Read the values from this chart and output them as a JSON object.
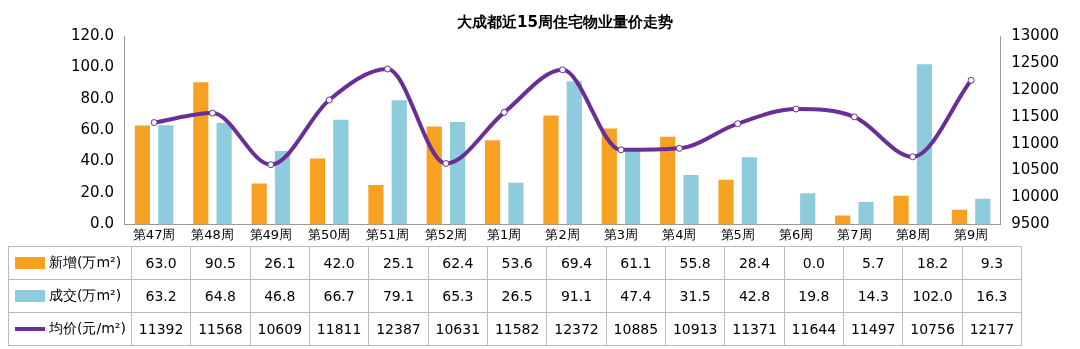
{
  "chart_data": {
    "type": "bar",
    "title": "大成都近15周住宅物业量价走势",
    "categories": [
      "第47周",
      "第48周",
      "第49周",
      "第50周",
      "第51周",
      "第52周",
      "第1周",
      "第2周",
      "第3周",
      "第4周",
      "第5周",
      "第6周",
      "第7周",
      "第8周",
      "第9周"
    ],
    "series": [
      {
        "name": "新增(万m²)",
        "color": "#f7a122",
        "values": [
          63.0,
          90.5,
          26.1,
          42.0,
          25.1,
          62.4,
          53.6,
          69.4,
          61.1,
          55.8,
          28.4,
          0.0,
          5.7,
          18.2,
          9.3
        ],
        "value_labels": [
          "63.0",
          "90.5",
          "26.1",
          "42.0",
          "25.1",
          "62.4",
          "53.6",
          "69.4",
          "61.1",
          "55.8",
          "28.4",
          "0.0",
          "5.7",
          "18.2",
          "9.3"
        ]
      },
      {
        "name": "成交(万m²)",
        "color": "#8ecbdc",
        "values": [
          63.2,
          64.8,
          46.8,
          66.7,
          79.1,
          65.3,
          26.5,
          91.1,
          47.4,
          31.5,
          42.8,
          19.8,
          14.3,
          102.0,
          16.3
        ],
        "value_labels": [
          "63.2",
          "64.8",
          "46.8",
          "66.7",
          "79.1",
          "65.3",
          "26.5",
          "91.1",
          "47.4",
          "31.5",
          "42.8",
          "19.8",
          "14.3",
          "102.0",
          "16.3"
        ]
      },
      {
        "name": "均价(元/m²)",
        "type": "line",
        "axis": "y2",
        "color": "#6a2f97",
        "values": [
          11392,
          11568,
          10609,
          11811,
          12387,
          10631,
          11582,
          12372,
          10885,
          10913,
          11371,
          11644,
          11497,
          10756,
          12177
        ],
        "value_labels": [
          "11392",
          "11568",
          "10609",
          "11811",
          "12387",
          "10631",
          "11582",
          "12372",
          "10885",
          "10913",
          "11371",
          "11644",
          "11497",
          "10756",
          "12177"
        ]
      }
    ],
    "ylim": [
      0,
      120
    ],
    "yticks": [
      {
        "value": 0,
        "label": "0.0"
      },
      {
        "value": 20,
        "label": "20.0"
      },
      {
        "value": 40,
        "label": "40.0"
      },
      {
        "value": 60,
        "label": "60.0"
      },
      {
        "value": 80,
        "label": "80.0"
      },
      {
        "value": 100,
        "label": "100.0"
      },
      {
        "value": 120,
        "label": "120.0"
      }
    ],
    "y2lim": [
      9500,
      13000
    ],
    "y2ticks": [
      9500,
      10000,
      10500,
      11000,
      11500,
      12000,
      12500,
      13000
    ],
    "marker": "circle",
    "grid": false,
    "legend": "bottom"
  }
}
